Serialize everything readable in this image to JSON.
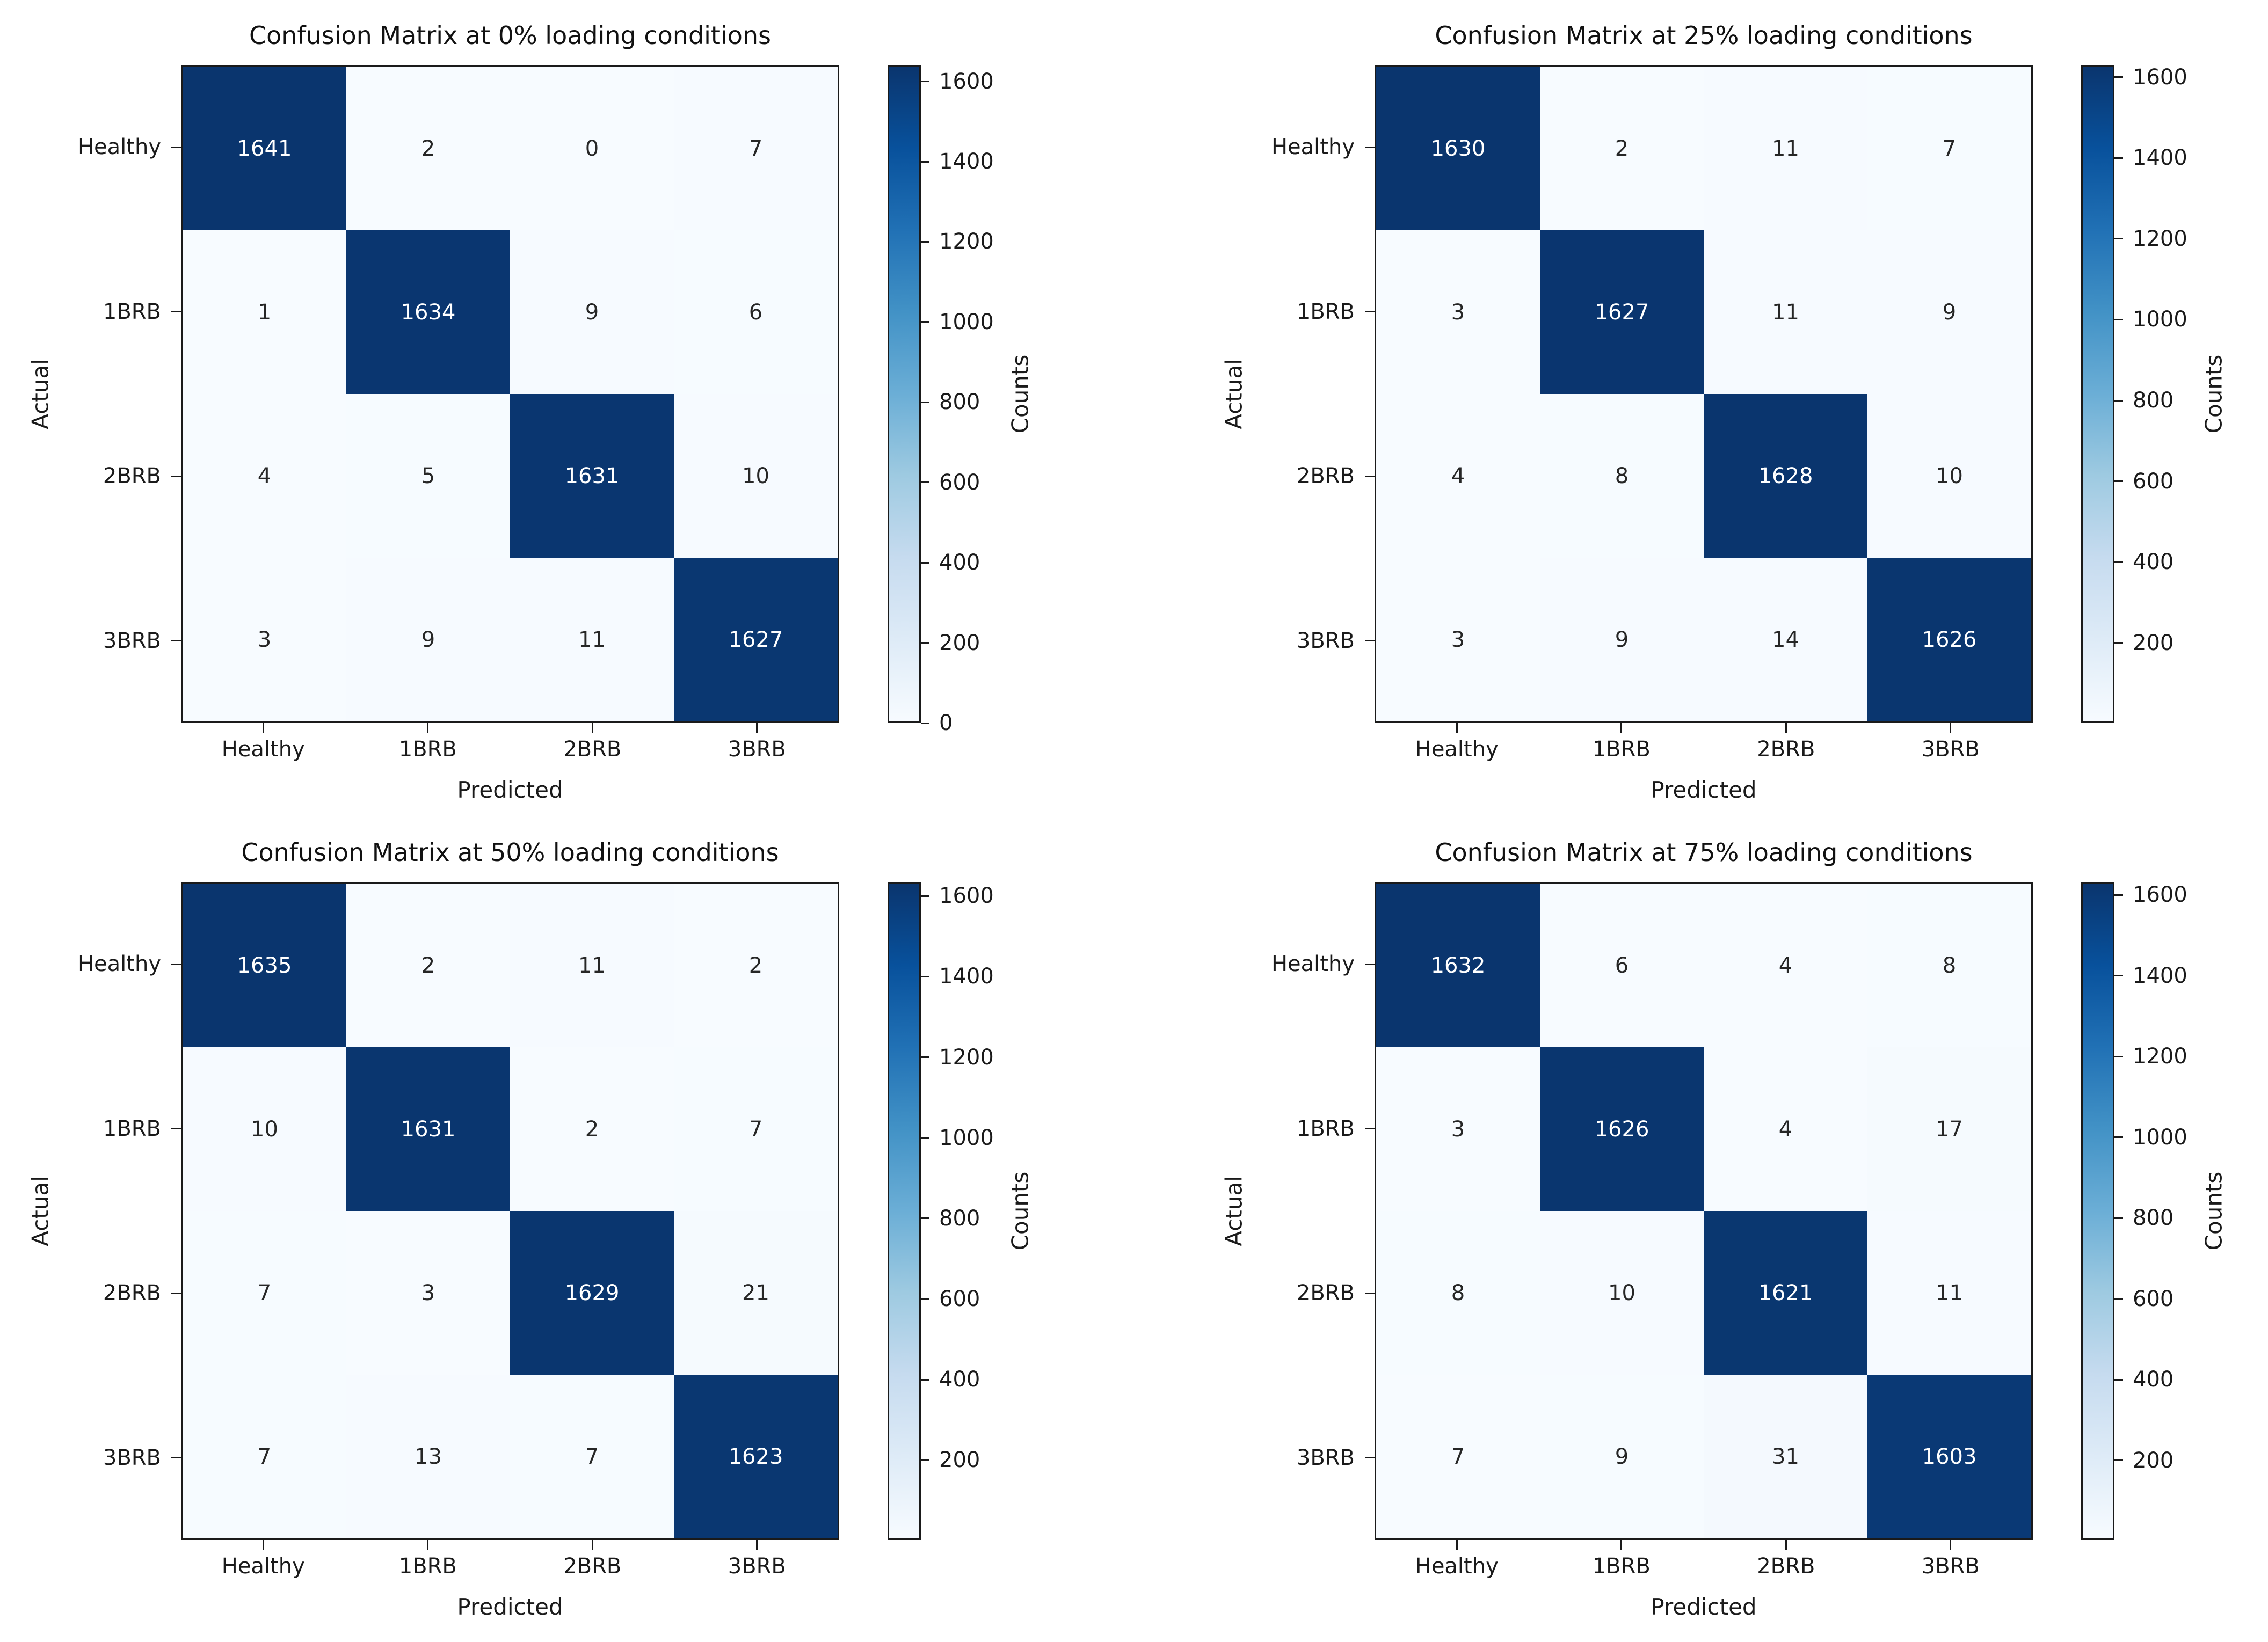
{
  "figure": {
    "background": "#ffffff",
    "axis_color": "#1a1a1a",
    "text_color": "#1a1a1a",
    "cell_text_dark": "#262626",
    "cell_text_light": "#ffffff",
    "colormap": {
      "name": "Blues",
      "stops": [
        "#f7fbff",
        "#deebf7",
        "#c6dbef",
        "#9ecae1",
        "#6baed6",
        "#4292c6",
        "#2171b5",
        "#08519c",
        "#0a356e"
      ]
    }
  },
  "chart_data": [
    {
      "type": "heatmap",
      "title": "Confusion Matrix at 0% loading conditions",
      "xlabel": "Predicted",
      "ylabel": "Actual",
      "x_categories": [
        "Healthy",
        "1BRB",
        "2BRB",
        "3BRB"
      ],
      "y_categories": [
        "Healthy",
        "1BRB",
        "2BRB",
        "3BRB"
      ],
      "values": [
        [
          1641,
          2,
          0,
          7
        ],
        [
          1,
          1634,
          9,
          6
        ],
        [
          4,
          5,
          1631,
          10
        ],
        [
          3,
          9,
          11,
          1627
        ]
      ],
      "vmin": 0,
      "vmax": 1641,
      "colorbar": {
        "label": "Counts",
        "ticks": [
          0,
          200,
          400,
          600,
          800,
          1000,
          1200,
          1400,
          1600
        ]
      }
    },
    {
      "type": "heatmap",
      "title": "Confusion Matrix at 25% loading conditions",
      "xlabel": "Predicted",
      "ylabel": "Actual",
      "x_categories": [
        "Healthy",
        "1BRB",
        "2BRB",
        "3BRB"
      ],
      "y_categories": [
        "Healthy",
        "1BRB",
        "2BRB",
        "3BRB"
      ],
      "values": [
        [
          1630,
          2,
          11,
          7
        ],
        [
          3,
          1627,
          11,
          9
        ],
        [
          4,
          8,
          1628,
          10
        ],
        [
          3,
          9,
          14,
          1626
        ]
      ],
      "vmin": 2,
      "vmax": 1630,
      "colorbar": {
        "label": "Counts",
        "ticks": [
          200,
          400,
          600,
          800,
          1000,
          1200,
          1400,
          1600
        ]
      }
    },
    {
      "type": "heatmap",
      "title": "Confusion Matrix at 50% loading conditions",
      "xlabel": "Predicted",
      "ylabel": "Actual",
      "x_categories": [
        "Healthy",
        "1BRB",
        "2BRB",
        "3BRB"
      ],
      "y_categories": [
        "Healthy",
        "1BRB",
        "2BRB",
        "3BRB"
      ],
      "values": [
        [
          1635,
          2,
          11,
          2
        ],
        [
          10,
          1631,
          2,
          7
        ],
        [
          7,
          3,
          1629,
          21
        ],
        [
          7,
          13,
          7,
          1623
        ]
      ],
      "vmin": 2,
      "vmax": 1635,
      "colorbar": {
        "label": "Counts",
        "ticks": [
          200,
          400,
          600,
          800,
          1000,
          1200,
          1400,
          1600
        ]
      }
    },
    {
      "type": "heatmap",
      "title": "Confusion Matrix at 75% loading conditions",
      "xlabel": "Predicted",
      "ylabel": "Actual",
      "x_categories": [
        "Healthy",
        "1BRB",
        "2BRB",
        "3BRB"
      ],
      "y_categories": [
        "Healthy",
        "1BRB",
        "2BRB",
        "3BRB"
      ],
      "values": [
        [
          1632,
          6,
          4,
          8
        ],
        [
          3,
          1626,
          4,
          17
        ],
        [
          8,
          10,
          1621,
          11
        ],
        [
          7,
          9,
          31,
          1603
        ]
      ],
      "vmin": 3,
      "vmax": 1632,
      "colorbar": {
        "label": "Counts",
        "ticks": [
          200,
          400,
          600,
          800,
          1000,
          1200,
          1400,
          1600
        ]
      }
    }
  ]
}
